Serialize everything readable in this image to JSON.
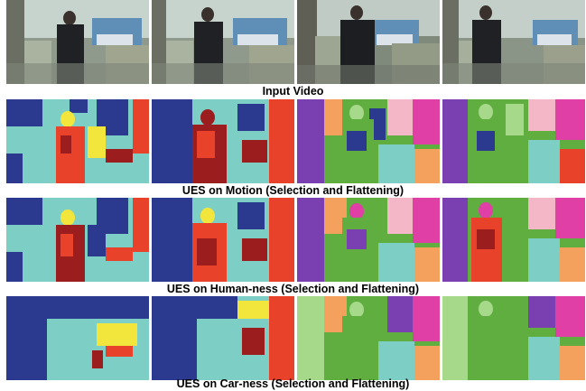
{
  "figure": {
    "rows": [
      {
        "id": "input",
        "caption": "Input Video",
        "kind": "photo"
      },
      {
        "id": "motion",
        "caption": "UES on Motion (Selection and Flattening)",
        "kind": "segmentation"
      },
      {
        "id": "human",
        "caption": "UES on Human-ness (Selection and Flattening)",
        "kind": "segmentation"
      },
      {
        "id": "car",
        "caption": "UES on Car-ness (Selection and Flattening)",
        "kind": "segmentation"
      }
    ],
    "palette": {
      "teal": "#7dcfc6",
      "navy": "#2b3a8f",
      "red": "#e8432a",
      "darkred": "#9b1d1d",
      "yellow": "#f2e53b",
      "orange": "#f3a15d",
      "green": "#5fae3f",
      "magenta": "#e03fa6",
      "lightgreen": "#a6d98a",
      "purple": "#7a3fb0",
      "pink": "#f4b7c7"
    }
  }
}
